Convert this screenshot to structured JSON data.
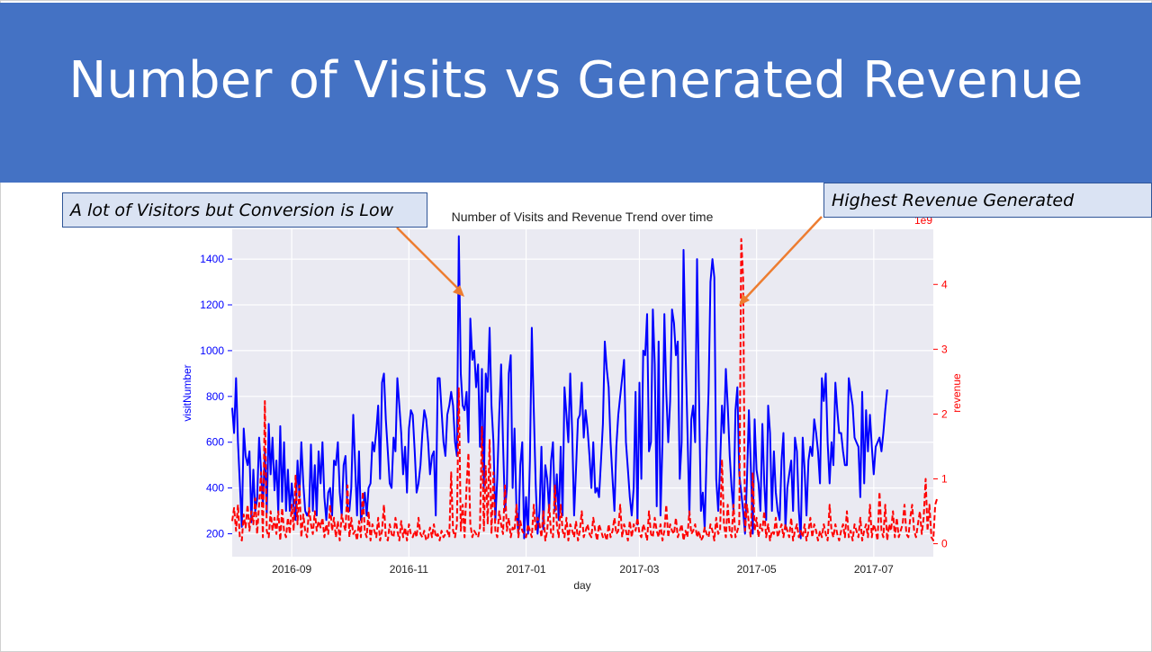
{
  "header": {
    "title": "Number of Visits vs Generated Revenue"
  },
  "callouts": {
    "left": "A lot of Visitors but Conversion is Low",
    "right": "Highest Revenue Generated"
  },
  "colors": {
    "header_bg": "#4472c4",
    "visits": "#0000ff",
    "revenue": "#ff0000",
    "arrow": "#ed7d31",
    "plot_bg": "#eaeaf2"
  },
  "chart_data": {
    "type": "line",
    "title": "Number of Visits and Revenue Trend over time",
    "xlabel": "day",
    "ylabel_left": "visitNumber",
    "ylabel_right": "revenue",
    "right_axis_offset_label": "1e9",
    "grid": true,
    "x_range": [
      "2016-08-01",
      "2017-08-01"
    ],
    "ylim_left": [
      100,
      1530
    ],
    "ylim_right": [
      -0.2,
      4.85
    ],
    "x_ticks": [
      "2016-09",
      "2016-11",
      "2017-01",
      "2017-03",
      "2017-05",
      "2017-07"
    ],
    "y_ticks_left": [
      200,
      400,
      600,
      800,
      1000,
      1200,
      1400
    ],
    "y_ticks_right": [
      0,
      1,
      2,
      3,
      4
    ],
    "series": [
      {
        "name": "visitNumber",
        "axis": "left",
        "style": "solid",
        "x_start": "2016-08-01",
        "step_days": 1,
        "values": [
          750,
          640,
          880,
          600,
          420,
          230,
          660,
          540,
          500,
          560,
          250,
          480,
          300,
          350,
          620,
          480,
          320,
          560,
          290,
          680,
          460,
          620,
          390,
          520,
          290,
          670,
          340,
          600,
          300,
          480,
          300,
          420,
          320,
          260,
          520,
          360,
          600,
          420,
          300,
          280,
          300,
          590,
          300,
          500,
          280,
          560,
          420,
          600,
          360,
          260,
          380,
          400,
          280,
          520,
          500,
          600,
          380,
          280,
          500,
          540,
          300,
          300,
          400,
          720,
          500,
          280,
          560,
          260,
          300,
          380,
          280,
          400,
          420,
          600,
          560,
          650,
          760,
          440,
          860,
          900,
          700,
          560,
          420,
          400,
          620,
          560,
          880,
          760,
          640,
          460,
          580,
          380,
          660,
          740,
          720,
          560,
          380,
          420,
          500,
          640,
          740,
          700,
          600,
          460,
          540,
          560,
          280,
          880,
          880,
          740,
          600,
          540,
          720,
          760,
          820,
          760,
          600,
          540,
          1500,
          900,
          760,
          740,
          820,
          600,
          1140,
          960,
          1000,
          840,
          940,
          580,
          920,
          400,
          900,
          820,
          1100,
          760,
          600,
          260,
          440,
          720,
          940,
          600,
          300,
          400,
          900,
          980,
          400,
          660,
          300,
          200,
          500,
          600,
          180,
          360,
          200,
          520,
          1100,
          740,
          420,
          200,
          300,
          580,
          220,
          500,
          440,
          300,
          520,
          600,
          300,
          460,
          260,
          580,
          280,
          840,
          720,
          600,
          900,
          640,
          280,
          480,
          700,
          720,
          860,
          620,
          740,
          660,
          540,
          400,
          600,
          380,
          400,
          360,
          520,
          680,
          1040,
          920,
          840,
          600,
          440,
          300,
          580,
          720,
          800,
          880,
          960,
          600,
          480,
          360,
          280,
          400,
          820,
          240,
          860,
          440,
          1000,
          980,
          1160,
          560,
          600,
          1180,
          940,
          320,
          1040,
          280,
          600,
          1160,
          820,
          600,
          780,
          1180,
          1120,
          980,
          1040,
          440,
          600,
          1440,
          1000,
          660,
          280,
          700,
          760,
          600,
          1400,
          820,
          300,
          380,
          220,
          560,
          820,
          1300,
          1400,
          1320,
          440,
          300,
          500,
          760,
          640,
          920,
          760,
          540,
          400,
          300,
          740,
          840,
          460,
          380,
          300,
          200,
          440,
          740,
          500,
          200,
          700,
          480,
          420,
          300,
          680,
          420,
          260,
          760,
          640,
          300,
          560,
          380,
          300,
          260,
          520,
          640,
          220,
          400,
          460,
          520,
          300,
          620,
          560,
          300,
          180,
          620,
          480,
          280,
          520,
          580,
          540,
          700,
          640,
          560,
          420,
          880,
          780,
          900,
          600,
          420,
          600,
          500,
          860,
          740,
          640,
          640,
          560,
          500,
          500,
          880,
          820,
          760,
          620,
          600,
          580,
          360,
          820,
          420,
          740,
          560,
          720,
          580,
          460,
          580,
          600,
          620,
          560,
          640,
          740,
          830
        ]
      },
      {
        "name": "revenue",
        "axis": "right",
        "style": "dashed",
        "x_start": "2016-08-01",
        "step_days": 1,
        "values": [
          0.35,
          0.55,
          0.2,
          0.6,
          0.1,
          0.05,
          0.45,
          0.25,
          0.6,
          0.2,
          0.5,
          0.3,
          0.7,
          0.15,
          0.6,
          1.1,
          0.1,
          2.2,
          0.2,
          0.1,
          0.5,
          0.2,
          0.4,
          0.15,
          0.5,
          0.05,
          0.55,
          0.2,
          0.1,
          0.4,
          0.15,
          0.6,
          0.2,
          1.05,
          0.3,
          0.9,
          0.1,
          0.45,
          0.2,
          0.1,
          0.55,
          0.3,
          0.15,
          0.5,
          0.2,
          0.35,
          0.25,
          0.4,
          0.1,
          0.3,
          0.15,
          0.6,
          0.2,
          0.4,
          0.1,
          0.35,
          0.05,
          0.45,
          0.3,
          0.2,
          0.9,
          0.1,
          0.4,
          0.15,
          0.2,
          0.05,
          0.35,
          0.1,
          0.8,
          0.2,
          0.1,
          0.5,
          0.05,
          0.3,
          0.2,
          0.1,
          0.4,
          0.05,
          0.2,
          0.6,
          0.1,
          0.05,
          0.3,
          0.15,
          0.1,
          0.4,
          0.2,
          0.05,
          0.35,
          0.1,
          0.25,
          0.05,
          0.3,
          0.15,
          0.1,
          0.2,
          0.1,
          0.4,
          0.15,
          0.1,
          0.2,
          0.05,
          0.1,
          0.25,
          0.1,
          0.3,
          0.1,
          0.15,
          0.05,
          0.2,
          0.1,
          0.15,
          0.2,
          0.1,
          1.1,
          0.2,
          0.1,
          0.3,
          2.4,
          0.2,
          0.6,
          0.1,
          0.9,
          1.4,
          0.3,
          0.1,
          0.2,
          0.15,
          0.1,
          0.25,
          1.8,
          0.2,
          1.2,
          0.3,
          1.6,
          0.15,
          1.1,
          0.2,
          0.1,
          0.5,
          0.3,
          0.15,
          0.9,
          0.2,
          0.4,
          0.1,
          0.25,
          0.2,
          0.6,
          0.1,
          0.35,
          0.2,
          0.15,
          0.1,
          0.3,
          0.2,
          0.1,
          0.6,
          0.2,
          0.4,
          0.3,
          0.1,
          0.5,
          0.05,
          0.2,
          0.6,
          0.15,
          0.1,
          0.9,
          0.3,
          0.1,
          0.6,
          0.2,
          0.1,
          0.4,
          0.05,
          0.3,
          0.2,
          0.1,
          0.35,
          0.05,
          0.2,
          0.5,
          0.1,
          0.2,
          0.3,
          0.15,
          0.1,
          0.4,
          0.2,
          0.05,
          0.3,
          0.2,
          0.1,
          0.15,
          0.05,
          0.3,
          0.1,
          0.2,
          0.4,
          0.15,
          0.2,
          0.6,
          0.1,
          0.3,
          0.2,
          0.05,
          0.35,
          0.1,
          0.3,
          0.2,
          0.4,
          0.15,
          0.1,
          0.3,
          0.2,
          0.05,
          0.5,
          0.15,
          0.1,
          0.4,
          0.2,
          0.1,
          0.3,
          0.05,
          0.2,
          0.6,
          0.1,
          0.3,
          0.2,
          0.15,
          0.4,
          0.1,
          0.2,
          0.3,
          0.05,
          0.2,
          0.1,
          0.5,
          0.15,
          0.2,
          0.3,
          0.1,
          0.2,
          0.05,
          0.1,
          0.25,
          0.15,
          0.1,
          0.3,
          0.2,
          0.05,
          0.4,
          0.15,
          0.2,
          1.3,
          0.3,
          0.1,
          0.6,
          0.2,
          0.1,
          0.6,
          0.1,
          0.2,
          0.3,
          4.7,
          4.1,
          0.2,
          0.6,
          0.3,
          0.1,
          1.1,
          0.2,
          0.4,
          0.1,
          0.3,
          0.2,
          0.5,
          0.1,
          0.3,
          0.05,
          0.2,
          0.15,
          0.4,
          0.1,
          0.2,
          0.3,
          0.1,
          0.3,
          0.2,
          0.1,
          0.4,
          0.05,
          0.2,
          0.3,
          0.1,
          0.2,
          0.1,
          0.3,
          0.05,
          0.2,
          0.4,
          0.1,
          0.3,
          0.2,
          0.05,
          0.2,
          0.1,
          0.3,
          0.15,
          0.05,
          0.6,
          0.2,
          0.1,
          0.3,
          0.15,
          0.05,
          0.2,
          0.3,
          0.1,
          0.5,
          0.1,
          0.2,
          0.05,
          0.3,
          0.2,
          0.1,
          0.4,
          0.05,
          0.2,
          0.3,
          0.1,
          0.6,
          0.1,
          0.3,
          0.2,
          0.05,
          0.8,
          0.2,
          0.1,
          0.6,
          0.05,
          0.3,
          0.2,
          0.5,
          0.1,
          0.4,
          0.1,
          0.2,
          0.3,
          0.6,
          0.15,
          0.1,
          0.4,
          0.6,
          0.2,
          0.1,
          0.3,
          0.5,
          0.15,
          0.4,
          1.0,
          0.2,
          0.6,
          0.1,
          0.05,
          0.6,
          0.7
        ]
      }
    ]
  }
}
